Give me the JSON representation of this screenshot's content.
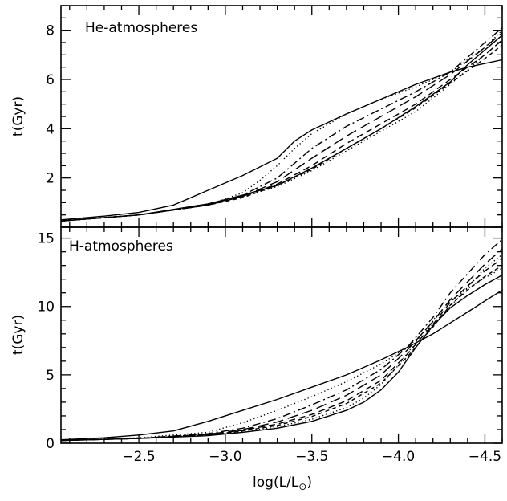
{
  "chart_data": [
    {
      "type": "line",
      "panel": "top",
      "title": "He-atmospheres",
      "xlabel": "",
      "ylabel": "t(Gyr)",
      "xlim": [
        -2.05,
        -4.6
      ],
      "ylim": [
        0.0,
        9.0
      ],
      "x_tick_labels": [],
      "y_ticks": [
        2,
        4,
        6,
        8
      ],
      "y_tick_labels": [
        "2",
        "4",
        "6",
        "8"
      ],
      "series": [
        {
          "style": "solid",
          "x": [
            -2.05,
            -2.3,
            -2.5,
            -2.7,
            -2.9,
            -3.1,
            -3.3,
            -3.4,
            -3.5,
            -3.7,
            -3.9,
            -4.1,
            -4.3,
            -4.4,
            -4.5,
            -4.6
          ],
          "y": [
            0.3,
            0.45,
            0.6,
            0.9,
            1.5,
            2.1,
            2.8,
            3.5,
            3.95,
            4.6,
            5.2,
            5.8,
            6.3,
            6.5,
            6.65,
            6.8
          ]
        },
        {
          "style": "solid",
          "x": [
            -2.05,
            -2.5,
            -2.9,
            -3.1,
            -3.3,
            -3.5,
            -3.7,
            -3.9,
            -4.1,
            -4.3,
            -4.4,
            -4.5,
            -4.6
          ],
          "y": [
            0.25,
            0.5,
            0.95,
            1.3,
            1.7,
            2.4,
            3.2,
            4.0,
            4.9,
            5.9,
            6.6,
            7.2,
            7.8
          ]
        },
        {
          "style": "dotted",
          "x": [
            -2.05,
            -2.5,
            -2.9,
            -3.1,
            -3.2,
            -3.3,
            -3.4,
            -3.5,
            -3.7,
            -3.9,
            -4.1,
            -4.3,
            -4.5,
            -4.6
          ],
          "y": [
            0.25,
            0.5,
            0.9,
            1.4,
            1.9,
            2.5,
            3.2,
            3.8,
            4.6,
            5.2,
            5.7,
            6.3,
            7.3,
            8.0
          ]
        },
        {
          "style": "dotted",
          "x": [
            -2.05,
            -2.5,
            -2.9,
            -3.1,
            -3.3,
            -3.5,
            -3.7,
            -3.9,
            -4.1,
            -4.3,
            -4.5,
            -4.6
          ],
          "y": [
            0.25,
            0.5,
            0.95,
            1.25,
            1.65,
            2.3,
            3.1,
            3.9,
            4.7,
            5.8,
            7.0,
            7.6
          ]
        },
        {
          "style": "dashdot",
          "x": [
            -2.05,
            -2.5,
            -2.9,
            -3.1,
            -3.3,
            -3.4,
            -3.5,
            -3.7,
            -3.9,
            -4.1,
            -4.3,
            -4.5,
            -4.6
          ],
          "y": [
            0.25,
            0.5,
            0.9,
            1.3,
            2.0,
            2.6,
            3.2,
            4.1,
            4.8,
            5.5,
            6.3,
            7.5,
            8.1
          ]
        },
        {
          "style": "longdash",
          "x": [
            -2.05,
            -2.5,
            -2.9,
            -3.1,
            -3.3,
            -3.5,
            -3.7,
            -3.9,
            -4.1,
            -4.3,
            -4.5,
            -4.6
          ],
          "y": [
            0.25,
            0.5,
            0.9,
            1.25,
            1.85,
            2.8,
            3.7,
            4.5,
            5.3,
            6.2,
            7.3,
            7.9
          ]
        },
        {
          "style": "dashed",
          "x": [
            -2.05,
            -2.5,
            -2.9,
            -3.1,
            -3.3,
            -3.5,
            -3.7,
            -3.9,
            -4.1,
            -4.3,
            -4.5,
            -4.6
          ],
          "y": [
            0.25,
            0.5,
            0.9,
            1.25,
            1.75,
            2.5,
            3.4,
            4.2,
            5.0,
            6.0,
            7.0,
            7.6
          ]
        },
        {
          "style": "shortdash",
          "x": [
            -2.05,
            -2.5,
            -2.9,
            -3.1,
            -3.3,
            -3.5,
            -3.7,
            -3.9,
            -4.1,
            -4.3,
            -4.5,
            -4.6
          ],
          "y": [
            0.25,
            0.5,
            0.9,
            1.2,
            1.7,
            2.35,
            3.2,
            4.0,
            4.85,
            5.85,
            6.85,
            7.4
          ]
        }
      ]
    },
    {
      "type": "line",
      "panel": "bottom",
      "title": "H-atmospheres",
      "xlabel": "log(L/L",
      "xlabel_subscript": "⊙",
      "xlabel_suffix": ")",
      "ylabel": "t(Gyr)",
      "xlim": [
        -2.05,
        -4.6
      ],
      "ylim": [
        0.0,
        15.8
      ],
      "x_ticks": [
        -2.5,
        -3.0,
        -3.5,
        -4.0,
        -4.5
      ],
      "x_tick_labels": [
        "−2.5",
        "−3.0",
        "−3.5",
        "−4.0",
        "−4.5"
      ],
      "y_ticks": [
        0,
        5,
        10,
        15
      ],
      "y_tick_labels": [
        "0",
        "5",
        "10",
        "15"
      ],
      "series": [
        {
          "style": "solid",
          "x": [
            -2.05,
            -2.3,
            -2.5,
            -2.7,
            -2.9,
            -3.1,
            -3.3,
            -3.5,
            -3.7,
            -3.9,
            -4.05,
            -4.2,
            -4.3,
            -4.4,
            -4.5,
            -4.6
          ],
          "y": [
            0.25,
            0.4,
            0.6,
            0.9,
            1.6,
            2.4,
            3.2,
            4.1,
            5.0,
            6.1,
            7.0,
            8.0,
            8.8,
            9.6,
            10.4,
            11.2
          ]
        },
        {
          "style": "solid",
          "x": [
            -2.05,
            -2.5,
            -2.9,
            -3.1,
            -3.3,
            -3.5,
            -3.7,
            -3.8,
            -3.9,
            -4.0,
            -4.1,
            -4.2,
            -4.3,
            -4.4,
            -4.5,
            -4.6
          ],
          "y": [
            0.2,
            0.35,
            0.55,
            0.8,
            1.1,
            1.6,
            2.4,
            3.0,
            3.9,
            5.2,
            7.0,
            8.6,
            9.9,
            10.8,
            11.6,
            12.3
          ]
        },
        {
          "style": "dotted",
          "x": [
            -2.05,
            -2.5,
            -2.9,
            -3.1,
            -3.3,
            -3.5,
            -3.7,
            -3.9,
            -4.05,
            -4.2,
            -4.3,
            -4.4,
            -4.5,
            -4.6
          ],
          "y": [
            0.2,
            0.4,
            0.8,
            1.5,
            2.4,
            3.4,
            4.5,
            5.8,
            7.0,
            8.7,
            10.0,
            11.4,
            12.8,
            13.8
          ]
        },
        {
          "style": "dotted",
          "x": [
            -2.05,
            -2.5,
            -2.9,
            -3.1,
            -3.3,
            -3.5,
            -3.7,
            -3.8,
            -3.9,
            -4.0,
            -4.1,
            -4.2,
            -4.3,
            -4.4,
            -4.5,
            -4.6
          ],
          "y": [
            0.2,
            0.35,
            0.6,
            0.85,
            1.2,
            1.75,
            2.6,
            3.3,
            4.3,
            5.7,
            7.4,
            9.0,
            10.4,
            11.3,
            12.1,
            12.8
          ]
        },
        {
          "style": "dashdot",
          "x": [
            -2.05,
            -2.5,
            -2.9,
            -3.1,
            -3.3,
            -3.5,
            -3.7,
            -3.9,
            -4.05,
            -4.2,
            -4.3,
            -4.4,
            -4.5,
            -4.6
          ],
          "y": [
            0.2,
            0.35,
            0.7,
            1.1,
            1.8,
            2.8,
            3.9,
            5.4,
            7.0,
            9.2,
            11.0,
            12.4,
            13.8,
            14.9
          ]
        },
        {
          "style": "longdash",
          "x": [
            -2.05,
            -2.5,
            -2.9,
            -3.1,
            -3.3,
            -3.5,
            -3.7,
            -3.9,
            -4.05,
            -4.2,
            -4.3,
            -4.4,
            -4.5,
            -4.6
          ],
          "y": [
            0.2,
            0.35,
            0.65,
            1.0,
            1.55,
            2.4,
            3.5,
            5.0,
            6.8,
            8.9,
            10.5,
            11.8,
            13.1,
            14.2
          ]
        },
        {
          "style": "dashed",
          "x": [
            -2.05,
            -2.5,
            -2.9,
            -3.1,
            -3.3,
            -3.5,
            -3.7,
            -3.9,
            -4.05,
            -4.2,
            -4.3,
            -4.4,
            -4.5,
            -4.6
          ],
          "y": [
            0.2,
            0.35,
            0.6,
            0.95,
            1.4,
            2.1,
            3.1,
            4.6,
            6.5,
            8.7,
            10.3,
            11.5,
            12.6,
            13.5
          ]
        },
        {
          "style": "shortdash",
          "x": [
            -2.05,
            -2.5,
            -2.9,
            -3.1,
            -3.3,
            -3.5,
            -3.7,
            -3.9,
            -4.05,
            -4.2,
            -4.3,
            -4.4,
            -4.5,
            -4.6
          ],
          "y": [
            0.2,
            0.35,
            0.6,
            0.9,
            1.3,
            1.95,
            2.9,
            4.4,
            6.3,
            8.5,
            10.1,
            11.2,
            12.2,
            13.0
          ]
        }
      ]
    }
  ]
}
